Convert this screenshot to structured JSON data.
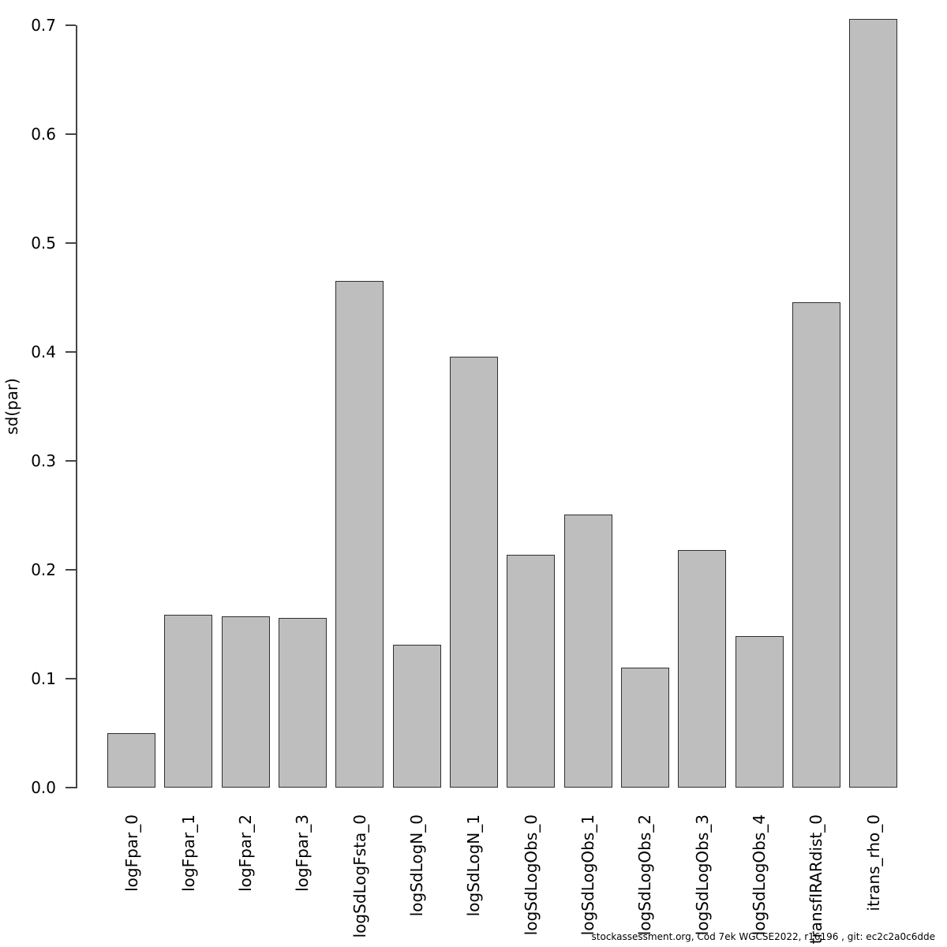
{
  "chart_data": {
    "type": "bar",
    "title": "",
    "xlabel": "",
    "ylabel": "sd(par)",
    "categories": [
      "logFpar_0",
      "logFpar_1",
      "logFpar_2",
      "logFpar_3",
      "logSdLogFsta_0",
      "logSdLogN_0",
      "logSdLogN_1",
      "logSdLogObs_0",
      "logSdLogObs_1",
      "logSdLogObs_2",
      "logSdLogObs_3",
      "logSdLogObs_4",
      "transfIRARdist_0",
      "itrans_rho_0"
    ],
    "values": [
      0.05,
      0.159,
      0.157,
      0.156,
      0.465,
      0.131,
      0.396,
      0.214,
      0.251,
      0.11,
      0.218,
      0.139,
      0.446,
      0.706
    ],
    "ylim": [
      0.0,
      0.7
    ],
    "yticks": [
      0.0,
      0.1,
      0.2,
      0.3,
      0.4,
      0.5,
      0.6,
      0.7
    ],
    "grid": false,
    "legend_position": "none",
    "bar_fill_color": "#bebebe",
    "bar_border_color": "#2f2f2f",
    "axis_color": "#454545"
  },
  "footer": {
    "text": "stockassessment.org, Cod 7ek WGCSE2022, r16196 , git: ec2c2a0c6dde"
  }
}
